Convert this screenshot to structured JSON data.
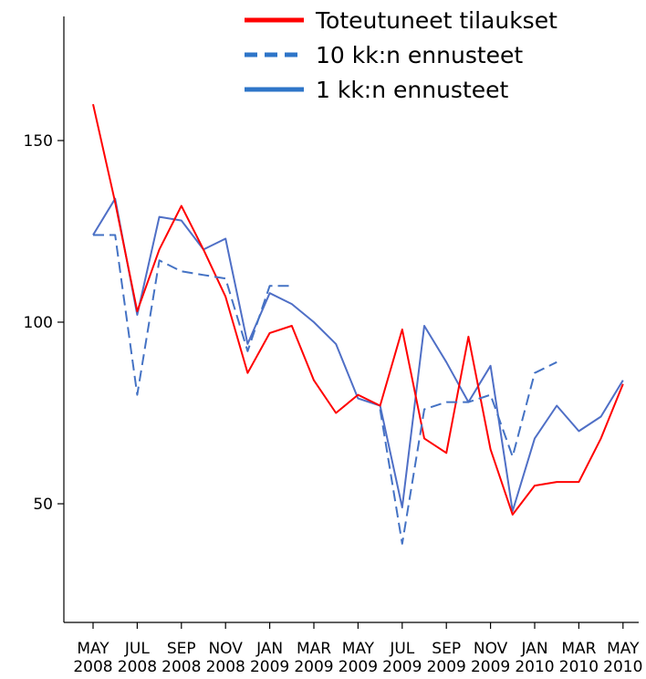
{
  "chart_data": {
    "type": "line",
    "title": "",
    "xlabel": "",
    "ylabel": "",
    "ylim": [
      25,
      190
    ],
    "yticks": [
      50,
      100,
      150
    ],
    "grid": false,
    "legend_position": "top-right",
    "x_tick_labels": [
      {
        "month": "MAY",
        "year": "2008"
      },
      {
        "month": "JUL",
        "year": "2008"
      },
      {
        "month": "SEP",
        "year": "2008"
      },
      {
        "month": "NOV",
        "year": "2008"
      },
      {
        "month": "JAN",
        "year": "2009"
      },
      {
        "month": "MAR",
        "year": "2009"
      },
      {
        "month": "MAY",
        "year": "2009"
      },
      {
        "month": "JUL",
        "year": "2009"
      },
      {
        "month": "SEP",
        "year": "2009"
      },
      {
        "month": "NOV",
        "year": "2009"
      },
      {
        "month": "JAN",
        "year": "2010"
      },
      {
        "month": "MAR",
        "year": "2010"
      },
      {
        "month": "MAY",
        "year": "2010"
      }
    ],
    "x": [
      "2008-05",
      "2008-06",
      "2008-07",
      "2008-08",
      "2008-09",
      "2008-10",
      "2008-11",
      "2008-12",
      "2009-01",
      "2009-02",
      "2009-03",
      "2009-04",
      "2009-05",
      "2009-06",
      "2009-07",
      "2009-08",
      "2009-09",
      "2009-10",
      "2009-11",
      "2009-12",
      "2010-01",
      "2010-02",
      "2010-03",
      "2010-04",
      "2010-05"
    ],
    "series": [
      {
        "name": "Toteutuneet tilaukset",
        "color": "#ff0000",
        "style": "solid",
        "values": [
          160,
          133,
          103,
          120,
          132,
          120,
          107,
          86,
          97,
          99,
          84,
          75,
          80,
          77,
          98,
          68,
          64,
          96,
          65,
          47,
          55,
          56,
          56,
          68,
          83
        ]
      },
      {
        "name": "10 kk:n ennusteet",
        "color": "#4472c4",
        "style": "dashed",
        "values": [
          124,
          124,
          80,
          117,
          114,
          113,
          112,
          92,
          110,
          110,
          null,
          null,
          null,
          null,
          null,
          null,
          null,
          null,
          null,
          null,
          null,
          null,
          null,
          null,
          null
        ],
        "segments": [
          {
            "x": [
              "2009-06",
              "2009-07",
              "2009-08",
              "2009-09",
              "2009-10",
              "2009-11",
              "2009-12",
              "2010-01",
              "2010-02"
            ],
            "values": [
              76,
              39,
              76,
              78,
              78,
              80,
              63,
              86,
              89
            ]
          }
        ]
      },
      {
        "name": "1 kk:n ennusteet",
        "color": "#4f6fc6",
        "style": "solid",
        "values": [
          124,
          134,
          102,
          129,
          128,
          120,
          123,
          94,
          108,
          105,
          100,
          94,
          79,
          77,
          49,
          99,
          89,
          78,
          88,
          48,
          68,
          77,
          70,
          74,
          84
        ]
      }
    ]
  }
}
